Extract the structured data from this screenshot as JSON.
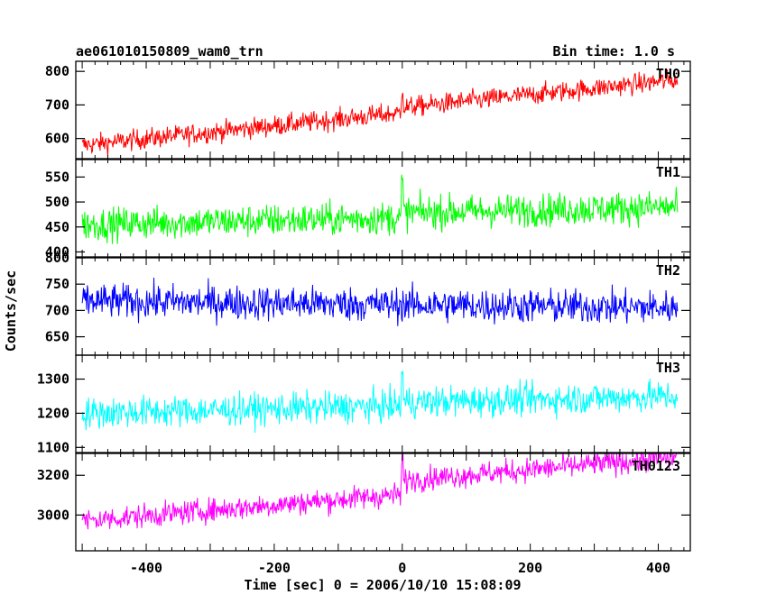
{
  "header": {
    "title": "ae061010150809_wam0_trn",
    "bin_time": "Bin time: 1.0 s"
  },
  "chart_data": {
    "type": "line",
    "xlabel": "Time [sec] 0 = 2006/10/10 15:08:09",
    "ylabel": "Counts/sec",
    "xlim": [
      -510,
      450
    ],
    "x_range": [
      -500,
      430
    ],
    "x_bin": 1.0,
    "xticks": [
      -400,
      -200,
      0,
      200,
      400
    ],
    "panels": [
      {
        "name": "TH0",
        "color": "#ff0000",
        "ylim": [
          540,
          830
        ],
        "yticks": [
          600,
          700,
          800
        ],
        "baseline_start": 580,
        "baseline_end": 760,
        "jump_at_0": 15,
        "noise": 28
      },
      {
        "name": "TH1",
        "color": "#00ff00",
        "ylim": [
          390,
          585
        ],
        "yticks": [
          400,
          450,
          500,
          550
        ],
        "baseline_start": 455,
        "baseline_end": 480,
        "jump_at_0": 10,
        "noise": 30
      },
      {
        "name": "TH2",
        "color": "#0000ff",
        "ylim": [
          615,
          800
        ],
        "yticks": [
          650,
          700,
          750,
          800
        ],
        "baseline_start": 718,
        "baseline_end": 705,
        "jump_at_0": 0,
        "noise": 30
      },
      {
        "name": "TH3",
        "color": "#00ffff",
        "ylim": [
          1085,
          1370
        ],
        "yticks": [
          1100,
          1200,
          1300
        ],
        "baseline_start": 1200,
        "baseline_end": 1240,
        "jump_at_0": 10,
        "noise": 42
      },
      {
        "name": "TH0123",
        "color": "#ff00ff",
        "ylim": [
          2820,
          3310
        ],
        "yticks": [
          3000,
          3200
        ],
        "baseline_start": 2970,
        "baseline_end": 3220,
        "jump_at_0": 70,
        "noise": 55
      }
    ]
  }
}
